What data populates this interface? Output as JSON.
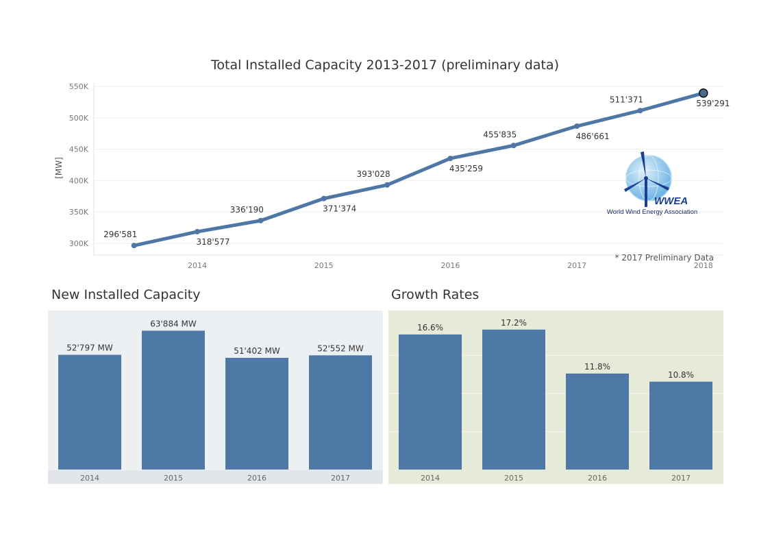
{
  "line_chart": {
    "title": "Total Installed Capacity 2013-2017 (preliminary data)",
    "ylabel": "[MW]",
    "note": "* 2017 Preliminary Data",
    "y_ticks": [
      "300K",
      "350K",
      "400K",
      "450K",
      "500K",
      "550K"
    ],
    "x_ticks": [
      "2014",
      "2015",
      "2016",
      "2017",
      "2018"
    ]
  },
  "logo": {
    "abbr": "WWEA",
    "name": "World Wind Energy Association"
  },
  "new_capacity": {
    "title": "New Installed Capacity"
  },
  "growth": {
    "title": "Growth Rates"
  },
  "colors": {
    "line": "#4e77a6",
    "bar": "#4e79a7",
    "panel_left_bg": "#edf0f3",
    "panel_right_bg": "#e6ebd9"
  },
  "chart_data": [
    {
      "type": "line",
      "title": "Total Installed Capacity 2013-2017 (preliminary data)",
      "ylabel": "[MW]",
      "xlabel": "",
      "x_tick_labels": [
        "2014",
        "2015",
        "2016",
        "2017",
        "2018"
      ],
      "ylim": [
        290000,
        555000
      ],
      "points": [
        {
          "x": "2013.5",
          "y": 296581,
          "label": "296'581"
        },
        {
          "x": "2014.0",
          "y": 318577,
          "label": "318'577"
        },
        {
          "x": "2014.5",
          "y": 336190,
          "label": "336'190"
        },
        {
          "x": "2015.0",
          "y": 371374,
          "label": "371'374"
        },
        {
          "x": "2015.5",
          "y": 393028,
          "label": "393'028"
        },
        {
          "x": "2016.0",
          "y": 435259,
          "label": "435'259"
        },
        {
          "x": "2016.5",
          "y": 455835,
          "label": "455'835"
        },
        {
          "x": "2017.0",
          "y": 486661,
          "label": "486'661"
        },
        {
          "x": "2017.5",
          "y": 511371,
          "label": "511'371"
        },
        {
          "x": "2018.0",
          "y": 539291,
          "label": "539'291"
        }
      ],
      "grid": true
    },
    {
      "type": "bar",
      "title": "New Installed Capacity",
      "categories": [
        "2014",
        "2015",
        "2016",
        "2017"
      ],
      "values": [
        52797,
        63884,
        51402,
        52552
      ],
      "labels": [
        "52'797 MW",
        "63'884 MW",
        "51'402 MW",
        "52'552 MW"
      ],
      "ylim": [
        0,
        70000
      ]
    },
    {
      "type": "bar",
      "title": "Growth Rates",
      "categories": [
        "2014",
        "2015",
        "2016",
        "2017"
      ],
      "values": [
        16.6,
        17.2,
        11.8,
        10.8
      ],
      "labels": [
        "16.6%",
        "17.2%",
        "11.8%",
        "10.8%"
      ],
      "ylim": [
        0,
        18.7
      ],
      "grid": true
    }
  ]
}
